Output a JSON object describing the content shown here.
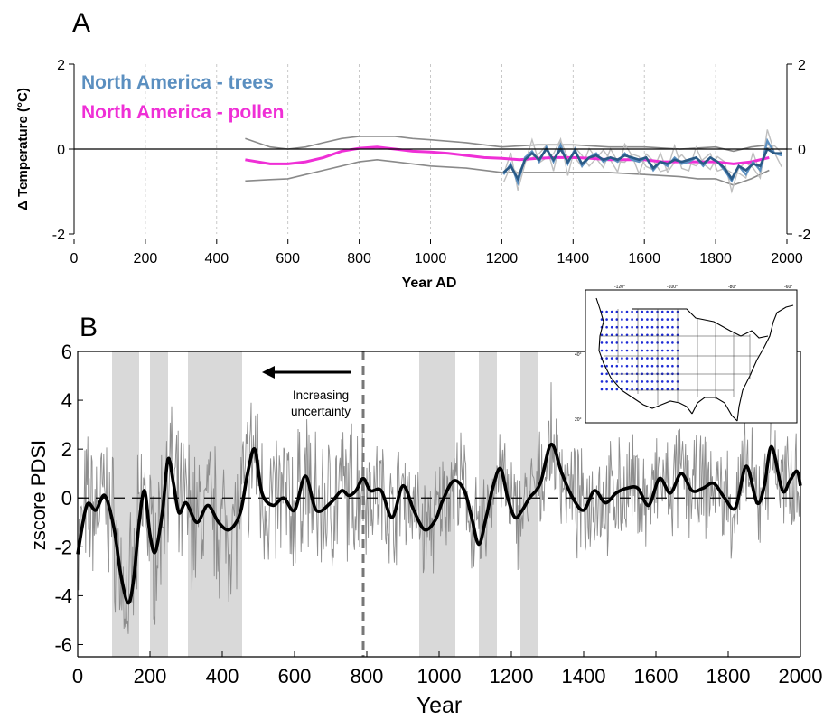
{
  "panel_a_letter": "A",
  "panel_b_letter": "B",
  "colors": {
    "trees": "#5b8fc0",
    "trees_mean": "#2a5a86",
    "pollen": "#ef2fd6",
    "envelope": "#8a8a8a",
    "shading": "#d9d9d9",
    "raw_pdsi": "#8c8c8c",
    "smooth_pdsi": "#000000"
  },
  "chart_data": [
    {
      "type": "line",
      "panel": "A",
      "title": "",
      "xlabel": "Year AD",
      "ylabel": "Δ Temperature (°C)",
      "xlim": [
        0,
        2000
      ],
      "ylim": [
        -2,
        2
      ],
      "xticks": [
        0,
        200,
        400,
        600,
        800,
        1000,
        1200,
        1400,
        1600,
        1800,
        2000
      ],
      "yticks": [
        -2,
        0,
        2
      ],
      "yticks_right": [
        -2,
        0,
        2
      ],
      "grid": "vertical dashed at 200-year intervals",
      "legend": {
        "position": "top-left",
        "entries": [
          "North America - trees",
          "North America - pollen"
        ]
      },
      "series": [
        {
          "name": "North America - pollen",
          "x": [
            480,
            550,
            600,
            650,
            700,
            750,
            800,
            850,
            900,
            950,
            1000,
            1050,
            1100,
            1150,
            1200,
            1250,
            1300,
            1350,
            1400,
            1450,
            1500,
            1550,
            1600,
            1650,
            1700,
            1750,
            1800,
            1850,
            1900,
            1950
          ],
          "y": [
            -0.25,
            -0.35,
            -0.35,
            -0.3,
            -0.2,
            -0.05,
            0.02,
            0.05,
            0.0,
            -0.05,
            -0.07,
            -0.1,
            -0.15,
            -0.2,
            -0.22,
            -0.25,
            -0.22,
            -0.2,
            -0.2,
            -0.22,
            -0.25,
            -0.25,
            -0.25,
            -0.3,
            -0.3,
            -0.3,
            -0.3,
            -0.35,
            -0.3,
            -0.2
          ]
        },
        {
          "name": "pollen envelope (upper)",
          "x": [
            480,
            550,
            600,
            650,
            700,
            750,
            800,
            850,
            900,
            950,
            1000,
            1100,
            1200,
            1300,
            1400,
            1500,
            1600,
            1700,
            1800,
            1850,
            1900,
            1950
          ],
          "y": [
            0.25,
            0.05,
            0.0,
            0.05,
            0.15,
            0.25,
            0.3,
            0.3,
            0.3,
            0.25,
            0.22,
            0.15,
            0.05,
            0.1,
            0.1,
            0.05,
            0.05,
            0.0,
            0.05,
            -0.05,
            0.05,
            0.1
          ]
        },
        {
          "name": "pollen envelope (lower)",
          "x": [
            480,
            550,
            600,
            650,
            700,
            750,
            800,
            850,
            900,
            950,
            1000,
            1100,
            1200,
            1300,
            1400,
            1500,
            1600,
            1700,
            1750,
            1800,
            1850,
            1900,
            1950
          ],
          "y": [
            -0.75,
            -0.72,
            -0.7,
            -0.6,
            -0.5,
            -0.4,
            -0.3,
            -0.25,
            -0.3,
            -0.35,
            -0.4,
            -0.45,
            -0.55,
            -0.55,
            -0.55,
            -0.55,
            -0.6,
            -0.65,
            -0.7,
            -0.7,
            -0.85,
            -0.7,
            -0.5
          ]
        },
        {
          "name": "North America - trees",
          "x": [
            1205,
            1225,
            1245,
            1265,
            1285,
            1305,
            1325,
            1345,
            1365,
            1385,
            1405,
            1425,
            1445,
            1465,
            1485,
            1505,
            1525,
            1545,
            1565,
            1585,
            1605,
            1625,
            1645,
            1665,
            1685,
            1705,
            1725,
            1745,
            1765,
            1785,
            1805,
            1825,
            1845,
            1865,
            1885,
            1905,
            1925,
            1945,
            1965,
            1985
          ],
          "y": [
            -0.6,
            -0.35,
            -0.8,
            -0.2,
            -0.05,
            -0.3,
            0.05,
            -0.3,
            0.1,
            -0.35,
            0.0,
            -0.4,
            -0.2,
            -0.1,
            -0.3,
            -0.2,
            -0.3,
            -0.1,
            -0.25,
            -0.3,
            -0.2,
            -0.5,
            -0.3,
            -0.4,
            -0.2,
            -0.35,
            -0.3,
            -0.2,
            -0.4,
            -0.2,
            -0.3,
            -0.5,
            -0.75,
            -0.4,
            -0.6,
            -0.3,
            -0.5,
            0.2,
            -0.1,
            -0.15
          ]
        },
        {
          "name": "trees mean",
          "x": [
            1205,
            1225,
            1245,
            1265,
            1285,
            1305,
            1325,
            1345,
            1365,
            1385,
            1405,
            1425,
            1445,
            1465,
            1485,
            1505,
            1525,
            1545,
            1565,
            1585,
            1605,
            1625,
            1645,
            1665,
            1685,
            1705,
            1725,
            1745,
            1765,
            1785,
            1805,
            1825,
            1845,
            1865,
            1885,
            1905,
            1925,
            1945,
            1965,
            1985
          ],
          "y": [
            -0.55,
            -0.4,
            -0.7,
            -0.25,
            -0.1,
            -0.25,
            0.0,
            -0.25,
            0.0,
            -0.3,
            -0.05,
            -0.35,
            -0.2,
            -0.15,
            -0.25,
            -0.2,
            -0.25,
            -0.15,
            -0.2,
            -0.25,
            -0.2,
            -0.45,
            -0.3,
            -0.35,
            -0.25,
            -0.3,
            -0.25,
            -0.2,
            -0.35,
            -0.2,
            -0.3,
            -0.45,
            -0.7,
            -0.4,
            -0.5,
            -0.35,
            -0.4,
            0.0,
            -0.1,
            -0.1
          ]
        }
      ]
    },
    {
      "type": "line",
      "panel": "B",
      "title": "",
      "xlabel": "Year",
      "ylabel": "zscore PDSI",
      "xlim": [
        0,
        2000
      ],
      "ylim": [
        -6.5,
        6
      ],
      "xticks": [
        0,
        200,
        400,
        600,
        800,
        1000,
        1200,
        1400,
        1600,
        1800,
        2000
      ],
      "yticks": [
        -6,
        -4,
        -2,
        0,
        2,
        4,
        6
      ],
      "zero_line": "dashed",
      "shaded_periods": [
        [
          95,
          170
        ],
        [
          200,
          250
        ],
        [
          305,
          455
        ],
        [
          945,
          1045
        ],
        [
          1110,
          1160
        ],
        [
          1225,
          1275
        ]
      ],
      "uncertainty_marker_year": 790,
      "annotation": {
        "text_line1": "Increasing",
        "text_line2": "uncertainty"
      },
      "inset_map": {
        "lon_labels": [
          "-120°",
          "-100°",
          "-80°",
          "-60°"
        ],
        "lat_labels": [
          "40°",
          "20°"
        ]
      },
      "series": [
        {
          "name": "",
          "x": [
            0,
            25,
            50,
            75,
            100,
            120,
            140,
            155,
            170,
            185,
            200,
            215,
            235,
            250,
            265,
            280,
            300,
            330,
            360,
            390,
            420,
            450,
            470,
            490,
            510,
            540,
            570,
            600,
            630,
            660,
            700,
            730,
            750,
            770,
            790,
            810,
            840,
            870,
            900,
            930,
            960,
            990,
            1010,
            1040,
            1070,
            1090,
            1110,
            1130,
            1150,
            1170,
            1190,
            1210,
            1230,
            1250,
            1280,
            1310,
            1340,
            1370,
            1400,
            1430,
            1460,
            1490,
            1520,
            1550,
            1580,
            1610,
            1640,
            1670,
            1700,
            1730,
            1760,
            1790,
            1820,
            1850,
            1880,
            1900,
            1920,
            1950,
            1970,
            1990,
            2000
          ],
          "y": [
            -2.3,
            -0.3,
            -0.5,
            0.1,
            -1.2,
            -3.2,
            -4.3,
            -3.3,
            -1.0,
            0.3,
            -1.5,
            -2.2,
            -0.5,
            1.6,
            0.6,
            -0.6,
            -0.2,
            -1.0,
            -0.3,
            -1.0,
            -1.3,
            -0.6,
            1.0,
            2.0,
            0.2,
            -0.3,
            0.0,
            -0.5,
            0.9,
            -0.5,
            -0.2,
            0.3,
            0.1,
            0.3,
            0.8,
            0.3,
            0.3,
            -0.8,
            0.5,
            -0.5,
            -1.3,
            -0.9,
            -0.1,
            0.7,
            0.3,
            -0.8,
            -1.9,
            -0.8,
            0.5,
            1.2,
            0.0,
            -0.8,
            -0.5,
            0.0,
            0.6,
            2.2,
            1.0,
            0.0,
            -0.5,
            0.3,
            -0.2,
            0.2,
            0.4,
            0.4,
            -0.3,
            0.8,
            0.2,
            1.0,
            0.3,
            0.4,
            0.6,
            0.0,
            -0.4,
            1.3,
            -0.2,
            0.5,
            2.1,
            0.3,
            0.7,
            1.1,
            0.5
          ]
        }
      ]
    }
  ]
}
